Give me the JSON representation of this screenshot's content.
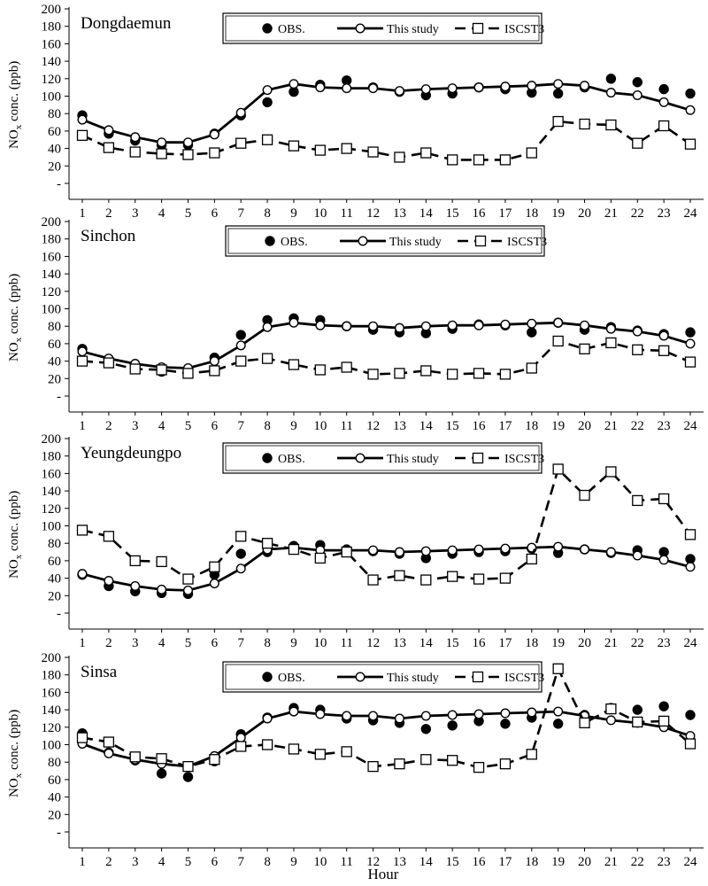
{
  "figure": {
    "ylabel": "NOx conc. (ppb)",
    "xlabel": "Hour",
    "legend": [
      "OBS.",
      "This study",
      "ISCST3"
    ]
  },
  "chart_data": [
    {
      "type": "line",
      "title": "Dongdaemun",
      "categories": [
        "1",
        "2",
        "3",
        "4",
        "5",
        "6",
        "7",
        "8",
        "9",
        "10",
        "11",
        "12",
        "13",
        "14",
        "15",
        "16",
        "17",
        "18",
        "19",
        "20",
        "21",
        "22",
        "23",
        "24"
      ],
      "ylim": [
        0,
        200
      ],
      "yticks": [
        "-",
        "20",
        "40",
        "60",
        "80",
        "100",
        "120",
        "140",
        "160",
        "180",
        "200"
      ],
      "ylabel": "NOx conc. (ppb)",
      "legend_position": "top-center",
      "series": [
        {
          "name": "OBS.",
          "marker": "filled-circle",
          "line": "none",
          "values": [
            78,
            57,
            49,
            44,
            44,
            57,
            78,
            93,
            105,
            113,
            118,
            110,
            105,
            101,
            103,
            110,
            108,
            104,
            103,
            110,
            120,
            116,
            108,
            103
          ]
        },
        {
          "name": "This study",
          "marker": "open-circle",
          "line": "solid",
          "values": [
            73,
            61,
            53,
            47,
            47,
            56,
            81,
            107,
            114,
            110,
            109,
            109,
            106,
            108,
            109,
            110,
            111,
            112,
            114,
            112,
            104,
            101,
            93,
            84
          ]
        },
        {
          "name": "ISCST3",
          "marker": "open-square",
          "line": "dashed",
          "values": [
            55,
            41,
            36,
            34,
            33,
            35,
            46,
            50,
            43,
            38,
            40,
            36,
            30,
            35,
            27,
            27,
            27,
            35,
            71,
            68,
            67,
            46,
            66,
            45
          ]
        }
      ]
    },
    {
      "type": "line",
      "title": "Sinchon",
      "categories": [
        "1",
        "2",
        "3",
        "4",
        "5",
        "6",
        "7",
        "8",
        "9",
        "10",
        "11",
        "12",
        "13",
        "14",
        "15",
        "16",
        "17",
        "18",
        "19",
        "20",
        "21",
        "22",
        "23",
        "24"
      ],
      "ylim": [
        0,
        200
      ],
      "yticks": [
        "-",
        "20",
        "40",
        "60",
        "80",
        "100",
        "120",
        "140",
        "160",
        "180",
        "200"
      ],
      "ylabel": "NOx conc. (ppb)",
      "legend_position": "top-center",
      "series": [
        {
          "name": "OBS.",
          "marker": "filled-circle",
          "line": "none",
          "values": [
            54,
            38,
            33,
            28,
            28,
            44,
            70,
            87,
            89,
            87,
            80,
            76,
            73,
            72,
            77,
            82,
            81,
            73,
            84,
            76,
            79,
            75,
            71,
            73
          ]
        },
        {
          "name": "This study",
          "marker": "open-circle",
          "line": "solid",
          "values": [
            51,
            43,
            37,
            33,
            32,
            40,
            58,
            79,
            84,
            81,
            80,
            80,
            78,
            80,
            81,
            81,
            82,
            83,
            84,
            81,
            77,
            74,
            69,
            60
          ]
        },
        {
          "name": "ISCST3",
          "marker": "open-square",
          "line": "dashed",
          "values": [
            40,
            38,
            31,
            30,
            26,
            29,
            40,
            43,
            36,
            30,
            33,
            25,
            26,
            29,
            25,
            26,
            25,
            32,
            63,
            54,
            61,
            53,
            52,
            39
          ]
        }
      ]
    },
    {
      "type": "line",
      "title": "Yeungdeungpo",
      "categories": [
        "1",
        "2",
        "3",
        "4",
        "5",
        "6",
        "7",
        "8",
        "9",
        "10",
        "11",
        "12",
        "13",
        "14",
        "15",
        "16",
        "17",
        "18",
        "19",
        "20",
        "21",
        "22",
        "23",
        "24"
      ],
      "ylim": [
        0,
        200
      ],
      "yticks": [
        "-",
        "20",
        "40",
        "60",
        "80",
        "100",
        "120",
        "140",
        "160",
        "180",
        "200"
      ],
      "ylabel": "NOx conc. (ppb)",
      "legend_position": "top-center",
      "series": [
        {
          "name": "OBS.",
          "marker": "filled-circle",
          "line": "none",
          "values": [
            44,
            31,
            25,
            23,
            22,
            44,
            68,
            70,
            77,
            78,
            73,
            71,
            68,
            63,
            68,
            70,
            71,
            74,
            69,
            73,
            69,
            72,
            70,
            62
          ]
        },
        {
          "name": "This study",
          "marker": "open-circle",
          "line": "solid",
          "values": [
            45,
            37,
            31,
            27,
            26,
            34,
            51,
            73,
            75,
            72,
            72,
            72,
            70,
            71,
            72,
            73,
            74,
            75,
            76,
            73,
            70,
            66,
            61,
            53
          ]
        },
        {
          "name": "ISCST3",
          "marker": "open-square",
          "line": "dashed",
          "values": [
            95,
            88,
            60,
            59,
            39,
            53,
            88,
            80,
            73,
            63,
            70,
            38,
            43,
            38,
            42,
            39,
            40,
            62,
            165,
            135,
            162,
            129,
            131,
            90
          ]
        }
      ]
    },
    {
      "type": "line",
      "title": "Sinsa",
      "categories": [
        "1",
        "2",
        "3",
        "4",
        "5",
        "6",
        "7",
        "8",
        "9",
        "10",
        "11",
        "12",
        "13",
        "14",
        "15",
        "16",
        "17",
        "18",
        "19",
        "20",
        "21",
        "22",
        "23",
        "24"
      ],
      "ylim": [
        0,
        200
      ],
      "yticks": [
        "-",
        "20",
        "40",
        "60",
        "80",
        "100",
        "120",
        "140",
        "160",
        "180",
        "200"
      ],
      "ylabel": "NOx conc. (ppb)",
      "legend_position": "top-center",
      "series": [
        {
          "name": "OBS.",
          "marker": "filled-circle",
          "line": "none",
          "values": [
            113,
            91,
            82,
            67,
            63,
            81,
            112,
            131,
            142,
            140,
            130,
            128,
            125,
            118,
            122,
            127,
            124,
            131,
            124,
            134,
            142,
            140,
            144,
            134
          ]
        },
        {
          "name": "This study",
          "marker": "open-circle",
          "line": "solid",
          "values": [
            101,
            90,
            83,
            78,
            75,
            87,
            108,
            130,
            138,
            135,
            133,
            133,
            130,
            133,
            134,
            135,
            136,
            137,
            138,
            133,
            128,
            125,
            120,
            110
          ]
        },
        {
          "name": "ISCST3",
          "marker": "open-square",
          "line": "dashed",
          "values": [
            108,
            103,
            86,
            84,
            75,
            83,
            98,
            100,
            95,
            89,
            92,
            75,
            78,
            83,
            82,
            74,
            78,
            89,
            187,
            125,
            141,
            126,
            127,
            101
          ]
        }
      ]
    }
  ]
}
